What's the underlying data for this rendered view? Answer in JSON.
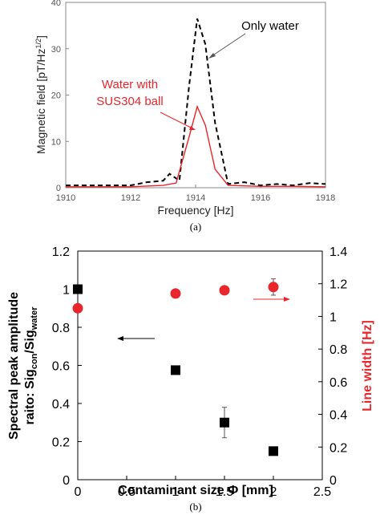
{
  "colors": {
    "water": "#000000",
    "ball": "#e8262b",
    "marker_red": "#e8262b",
    "marker_black": "#000000"
  },
  "chart_data": [
    {
      "type": "line",
      "caption": "(a)",
      "xlabel": "Frequency [Hz]",
      "ylabel": "Magnetic field [pT/Hz",
      "ylabel_sup": "1/2",
      "ylabel_close": "]",
      "xlim": [
        1910,
        1918
      ],
      "ylim": [
        0,
        40
      ],
      "xticks": [
        "1910",
        "1912",
        "1914",
        "1916",
        "1918"
      ],
      "yticks": [
        "0",
        "10",
        "20",
        "30",
        "40"
      ],
      "annotations": {
        "water": "Only water",
        "ball_line1": "Water with",
        "ball_line2": "SUS304 ball"
      },
      "series": [
        {
          "name": "Only water",
          "style": "dashed",
          "x": [
            1910,
            1910.5,
            1911,
            1911.5,
            1912,
            1912.5,
            1913,
            1913.2,
            1913.5,
            1913.8,
            1914.05,
            1914.3,
            1914.6,
            1915,
            1915.5,
            1916,
            1916.5,
            1917,
            1917.5,
            1918
          ],
          "y": [
            0.5,
            0.5,
            0.5,
            0.5,
            0.5,
            1.2,
            1.5,
            3,
            1.5,
            22,
            36.5,
            31,
            14,
            0.8,
            1.2,
            0.5,
            0.8,
            0.5,
            1,
            0.8
          ]
        },
        {
          "name": "Water with SUS304 ball",
          "style": "solid",
          "x": [
            1910,
            1911,
            1912,
            1913,
            1913.4,
            1913.8,
            1914.05,
            1914.3,
            1914.6,
            1915,
            1916,
            1917,
            1918
          ],
          "y": [
            0.2,
            0.2,
            0.2,
            0.5,
            1,
            11,
            17.5,
            13.5,
            4,
            0.5,
            0.3,
            0.3,
            0.2
          ]
        }
      ]
    },
    {
      "type": "scatter",
      "caption": "(b)",
      "xlabel": "Contaminant size Φ [mm]",
      "ylabel_line1": "Spectral peak amplitude",
      "ylabel_line2_base": "raito: Sig",
      "ylabel_sub1": "con",
      "ylabel_mid": "/Sig",
      "ylabel_sub2": "water",
      "y2label": "Line width [Hz]",
      "xlim": [
        0,
        2.5
      ],
      "ylim": [
        0,
        1.2
      ],
      "y2lim": [
        0,
        1.4
      ],
      "xticks": [
        "0",
        "0.5",
        "1",
        "1.5",
        "2",
        "2.5"
      ],
      "yticks": [
        "0",
        "0.2",
        "0.4",
        "0.6",
        "0.8",
        "1",
        "1.2"
      ],
      "y2ticks": [
        "0",
        "0.2",
        "0.4",
        "0.6",
        "0.8",
        "1",
        "1.2",
        "1.4"
      ],
      "series": [
        {
          "marker": "square",
          "axis": "left",
          "x": [
            0,
            1,
            1.5,
            2
          ],
          "y": [
            1.0,
            0.575,
            0.3,
            0.15
          ],
          "err": [
            0,
            0,
            0.08,
            0
          ]
        },
        {
          "marker": "circle",
          "axis": "right",
          "x": [
            0,
            1,
            1.5,
            2
          ],
          "y": [
            1.05,
            1.14,
            1.16,
            1.18
          ],
          "err": [
            0,
            0,
            0.02,
            0.05
          ]
        }
      ]
    }
  ]
}
